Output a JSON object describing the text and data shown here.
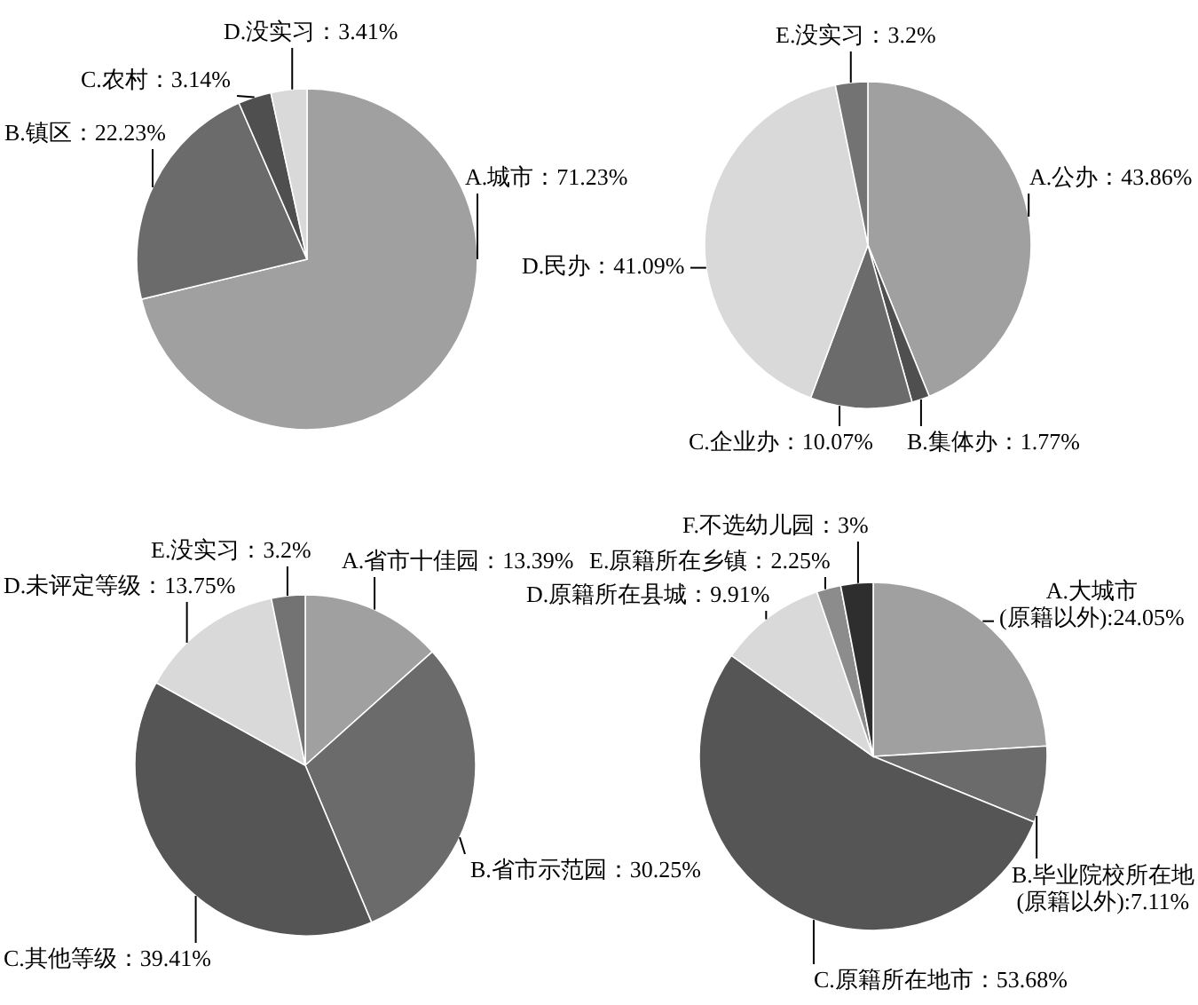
{
  "chart_data": [
    {
      "type": "pie",
      "categories": [
        "A.城市",
        "B.镇区",
        "C.农村",
        "D.没实习"
      ],
      "values": [
        71.23,
        22.23,
        3.14,
        3.41
      ],
      "value_labels": [
        "71.23%",
        "22.23%",
        "3.14%",
        "3.41%"
      ],
      "colors": [
        "#a0a0a0",
        "#6b6b6b",
        "#4f4f4f",
        "#d9d9d9"
      ]
    },
    {
      "type": "pie",
      "categories": [
        "A.公办",
        "B.集体办",
        "C.企业办",
        "D.民办",
        "E.没实习"
      ],
      "values": [
        43.86,
        1.77,
        10.07,
        41.09,
        3.2
      ],
      "value_labels": [
        "43.86%",
        "1.77%",
        "10.07%",
        "41.09%",
        "3.2%"
      ],
      "colors": [
        "#a0a0a0",
        "#4f4f4f",
        "#6b6b6b",
        "#d9d9d9",
        "#737373"
      ]
    },
    {
      "type": "pie",
      "categories": [
        "A.省市十佳园",
        "B.省市示范园",
        "C.其他等级",
        "D.未评定等级",
        "E.没实习"
      ],
      "values": [
        13.39,
        30.25,
        39.41,
        13.75,
        3.2
      ],
      "value_labels": [
        "13.39%",
        "30.25%",
        "39.41%",
        "13.75%",
        "3.2%"
      ],
      "colors": [
        "#a0a0a0",
        "#6b6b6b",
        "#555555",
        "#d9d9d9",
        "#737373"
      ]
    },
    {
      "type": "pie",
      "categories": [
        "A.大城市(原籍以外)",
        "B.毕业院校所在地(原籍以外)",
        "C.原籍所在地市",
        "D.原籍所在县城",
        "E.原籍所在乡镇",
        "F.不选幼儿园"
      ],
      "values": [
        24.05,
        7.11,
        53.68,
        9.91,
        2.25,
        3
      ],
      "value_labels": [
        "24.05%",
        "7.11%",
        "53.68%",
        "9.91%",
        "2.25%",
        "3%"
      ],
      "colors": [
        "#a0a0a0",
        "#6b6b6b",
        "#555555",
        "#d9d9d9",
        "#8c8c8c",
        "#2e2e2e"
      ]
    }
  ]
}
